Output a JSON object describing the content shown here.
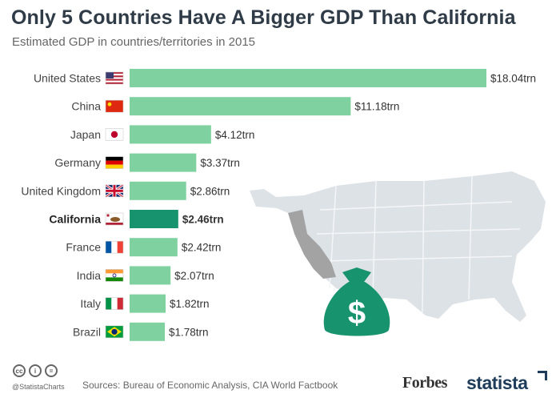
{
  "header": {
    "title": "Only 5 Countries Have A Bigger GDP Than California",
    "subtitle": "Estimated GDP in countries/territories in 2015"
  },
  "chart_data": {
    "type": "bar",
    "orientation": "horizontal",
    "title": "Only 5 Countries Have A Bigger GDP Than California",
    "subtitle": "Estimated GDP in countries/territories in 2015",
    "unit": "trn",
    "categories": [
      "United States",
      "China",
      "Japan",
      "Germany",
      "United Kingdom",
      "California",
      "France",
      "India",
      "Italy",
      "Brazil"
    ],
    "values": [
      18.04,
      11.18,
      4.12,
      3.37,
      2.86,
      2.46,
      2.42,
      2.07,
      1.82,
      1.78
    ],
    "data_labels": [
      "$18.04trn",
      "$11.18trn",
      "$4.12trn",
      "$3.37trn",
      "$2.86trn",
      "$2.46trn",
      "$2.42trn",
      "$2.07trn",
      "$1.82trn",
      "$1.78trn"
    ],
    "highlight": "California",
    "flags": [
      "us-flag-icon",
      "china-flag-icon",
      "japan-flag-icon",
      "germany-flag-icon",
      "uk-flag-icon",
      "california-flag-icon",
      "france-flag-icon",
      "india-flag-icon",
      "italy-flag-icon",
      "brazil-flag-icon"
    ],
    "colors": {
      "bar": "#7fd19f",
      "highlight": "#17936d",
      "map": "#dde2e7",
      "map_highlight": "#a3a3a3",
      "bag": "#17936d"
    },
    "grid": false,
    "legend": "none"
  },
  "footer": {
    "handle": "@StatistaCharts",
    "source": "Sources: Bureau of Economic Analysis, CIA World Factbook",
    "brand_forbes": "Forbes",
    "brand_statista": "statista"
  }
}
